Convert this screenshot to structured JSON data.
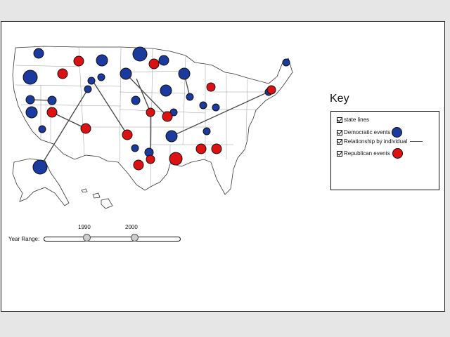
{
  "key": {
    "title": "Key",
    "items": [
      {
        "label": "state lines",
        "checked": true,
        "symbol": "none"
      },
      {
        "label": "Democratic events",
        "checked": true,
        "symbol": "blue-circle",
        "color": "#1a3a9e"
      },
      {
        "label": "Relationship by individual",
        "checked": true,
        "symbol": "line",
        "color": "#555555"
      },
      {
        "label": "Republican events",
        "checked": true,
        "symbol": "red-circle",
        "color": "#dd1111"
      }
    ]
  },
  "slider": {
    "label": "Year Range:",
    "lower_value": "1990",
    "upper_value": "2000"
  },
  "colors": {
    "democratic": "#1a3a9e",
    "republican": "#dd1111",
    "relationship_line": "#555555",
    "state_lines": "#999999"
  }
}
